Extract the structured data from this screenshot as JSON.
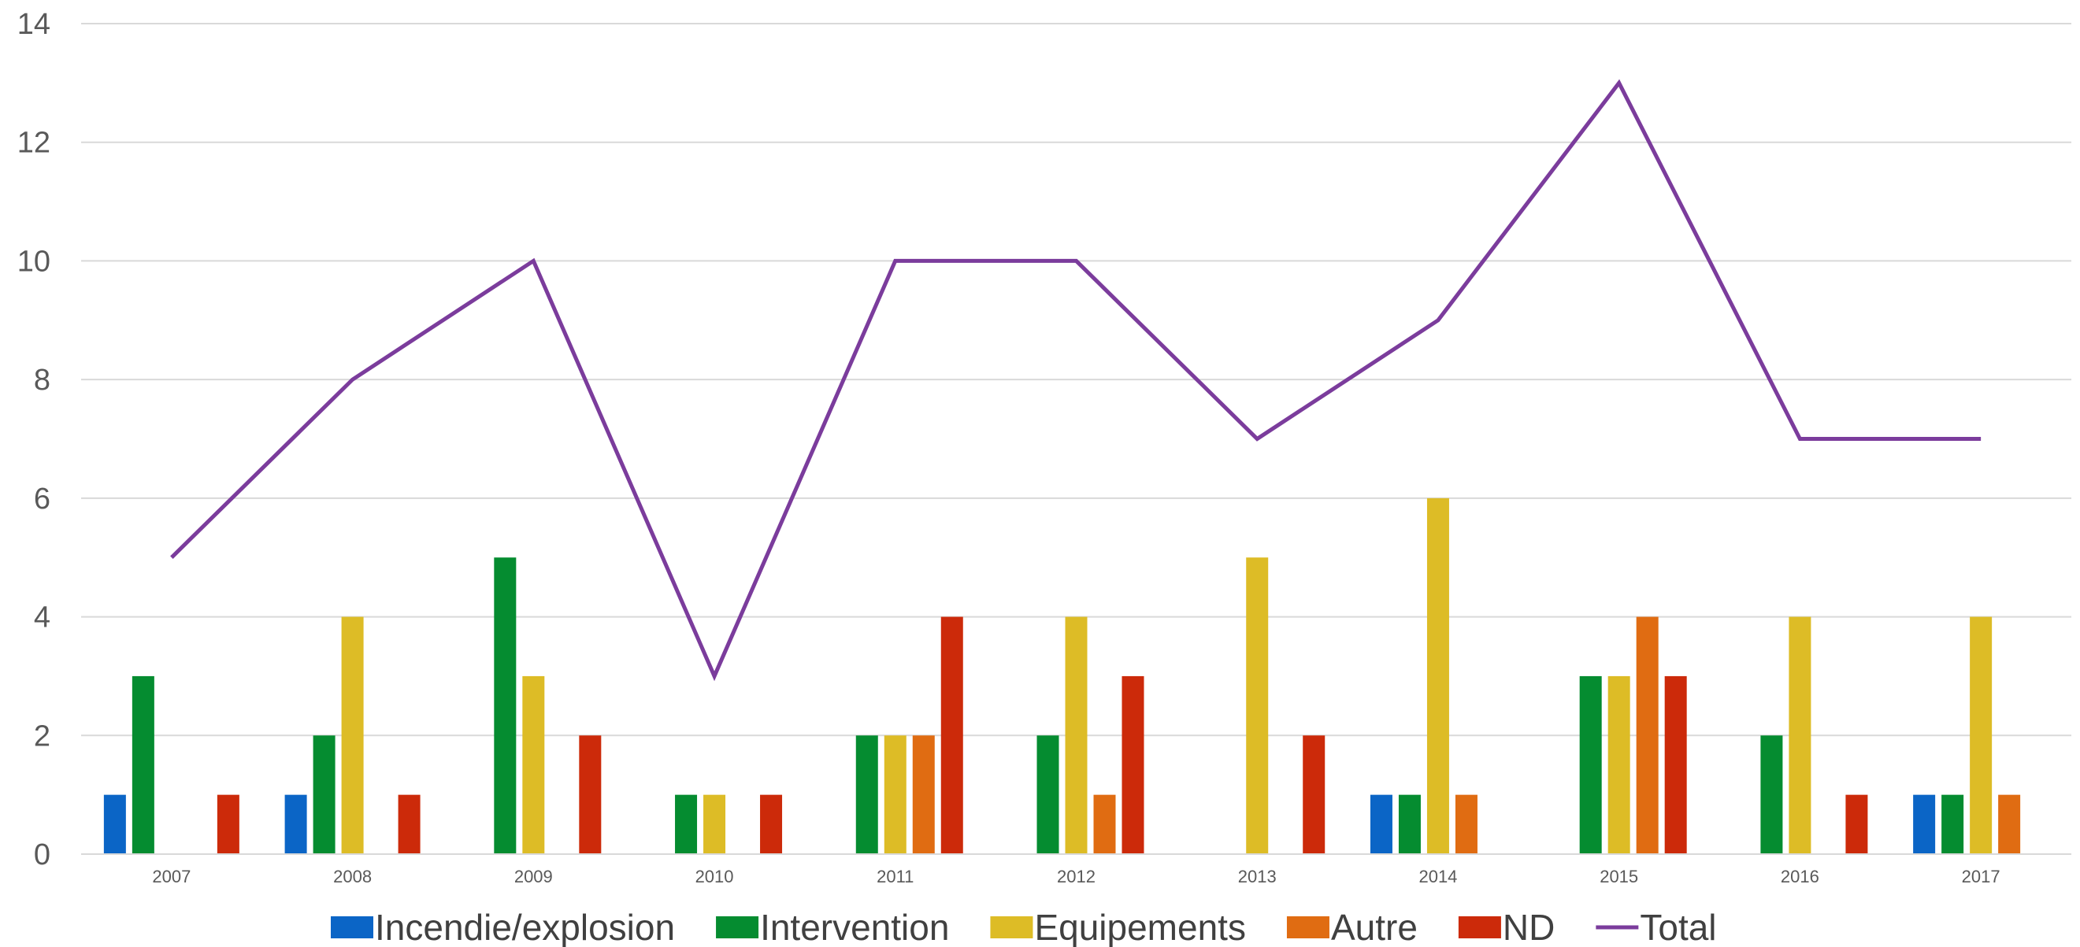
{
  "chart_data": {
    "type": "bar",
    "categories": [
      "2007",
      "2008",
      "2009",
      "2010",
      "2011",
      "2012",
      "2013",
      "2014",
      "2015",
      "2016",
      "2017"
    ],
    "series": [
      {
        "name": "Incendie/explosion",
        "type": "bar",
        "color": "#0b65c6",
        "values": [
          1,
          1,
          0,
          0,
          0,
          0,
          0,
          1,
          0,
          0,
          1
        ]
      },
      {
        "name": "Intervention",
        "type": "bar",
        "color": "#058c30",
        "values": [
          3,
          2,
          5,
          1,
          2,
          2,
          0,
          1,
          3,
          2,
          1
        ]
      },
      {
        "name": "Equipements",
        "type": "bar",
        "color": "#ddbc26",
        "values": [
          0,
          4,
          3,
          1,
          2,
          4,
          5,
          6,
          3,
          4,
          4
        ]
      },
      {
        "name": "Autre",
        "type": "bar",
        "color": "#e06c12",
        "values": [
          0,
          0,
          0,
          0,
          2,
          1,
          0,
          1,
          4,
          0,
          1
        ]
      },
      {
        "name": "ND",
        "type": "bar",
        "color": "#cc2a0a",
        "values": [
          1,
          1,
          2,
          1,
          4,
          3,
          2,
          0,
          3,
          1,
          0
        ]
      },
      {
        "name": "Total",
        "type": "line",
        "color": "#7b3c9c",
        "values": [
          5,
          8,
          10,
          3,
          10,
          10,
          7,
          9,
          13,
          7,
          7
        ]
      }
    ],
    "yticks": [
      "0",
      "2",
      "4",
      "6",
      "8",
      "10",
      "12",
      "14"
    ],
    "ylim": [
      0,
      14
    ],
    "grid": true,
    "legend_position": "bottom"
  }
}
